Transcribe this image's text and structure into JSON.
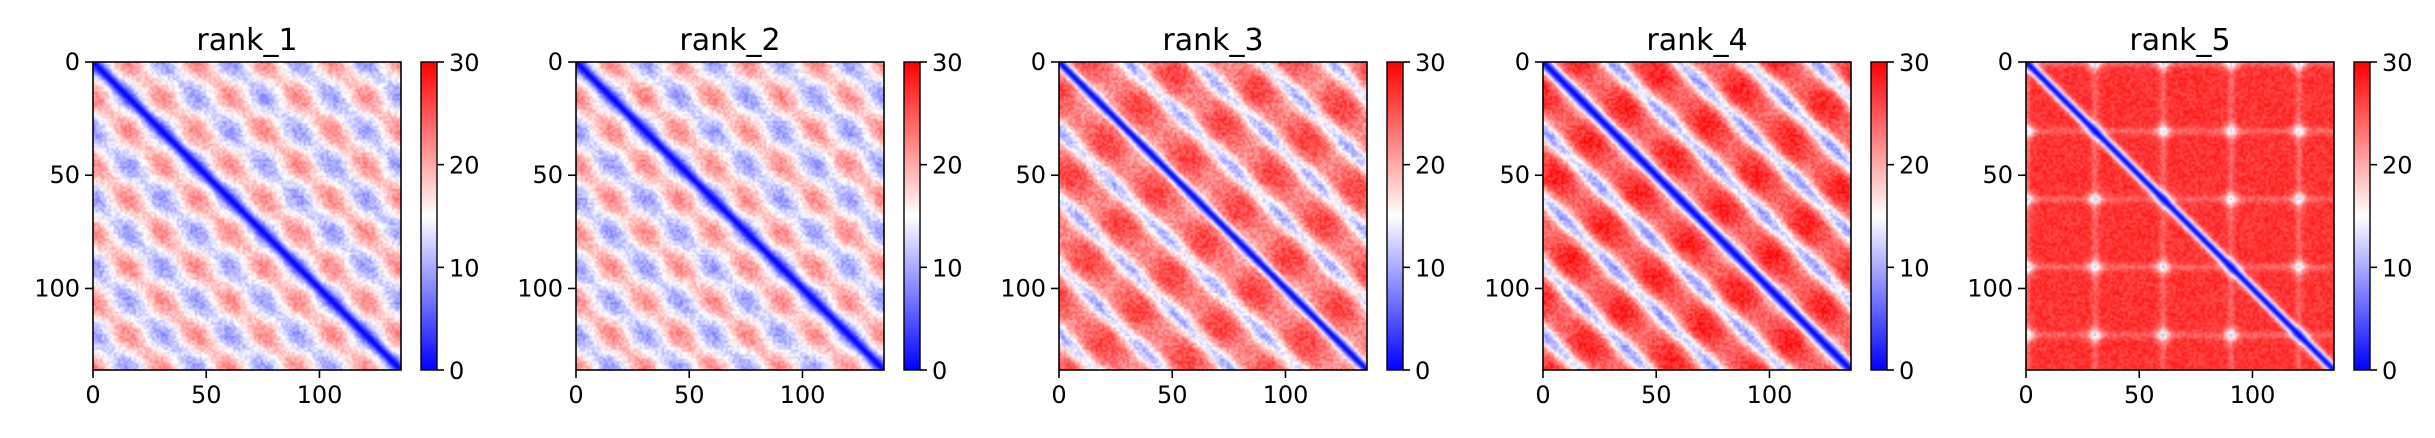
{
  "chart_data": {
    "type": "heatmap",
    "colormap": "bwr",
    "colors": {
      "low": "#0000ff",
      "mid": "#ffffff",
      "high": "#ff0000"
    },
    "grid": false,
    "matrix_size": 136,
    "panels": [
      {
        "title": "rank_1",
        "pattern": "blocky-periodic",
        "period": 30,
        "offdiag_base": 22,
        "band_depth": 13,
        "diag_width": 3.2,
        "noise": 2.0
      },
      {
        "title": "rank_2",
        "pattern": "blocky-periodic",
        "period": 30,
        "offdiag_base": 22,
        "band_depth": 13,
        "diag_width": 3.2,
        "noise": 2.0
      },
      {
        "title": "rank_3",
        "pattern": "diagonal-stripes",
        "period": 30,
        "offdiag_base": 24,
        "band_depth": 12,
        "diag_width": 3.2,
        "noise": 2.2
      },
      {
        "title": "rank_4",
        "pattern": "diagonal-stripes",
        "period": 30,
        "offdiag_base": 26,
        "band_depth": 15,
        "diag_width": 4.0,
        "noise": 2.0
      },
      {
        "title": "rank_5",
        "pattern": "grid-spots",
        "period": 30,
        "offdiag_base": 27,
        "band_depth": 9,
        "diag_width": 3.0,
        "noise": 1.5
      }
    ],
    "x_ticks": [
      "0",
      "50",
      "100"
    ],
    "x_tick_values": [
      0,
      50,
      100
    ],
    "y_ticks": [
      "0",
      "50",
      "100"
    ],
    "y_tick_values": [
      0,
      50,
      100
    ],
    "colorbar": {
      "range": [
        0,
        30
      ],
      "ticks": [
        "0",
        "10",
        "20",
        "30"
      ],
      "tick_values": [
        0,
        10,
        20,
        30
      ]
    }
  }
}
